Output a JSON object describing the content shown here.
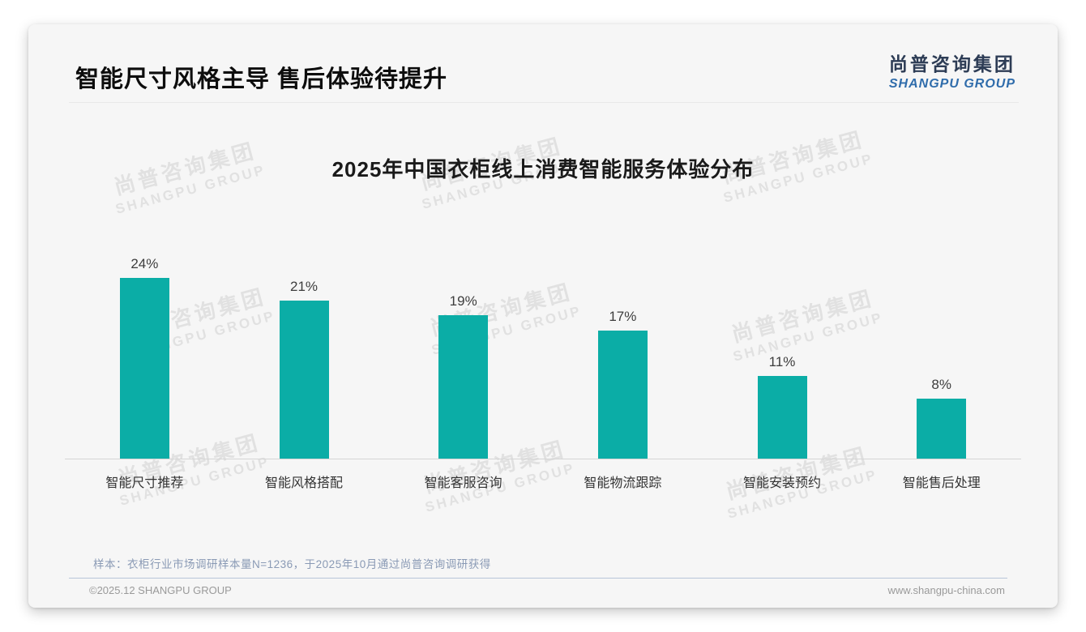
{
  "page": {
    "title": "智能尺寸风格主导 售后体验待提升",
    "logo": {
      "cn": "尚普咨询集团",
      "en": "SHANGPU GROUP"
    },
    "watermark": {
      "cn": "尚普咨询集团",
      "en": "SHANGPU GROUP"
    },
    "footnote": "样本：衣柜行业市场调研样本量N=1236，于2025年10月通过尚普咨询调研获得",
    "footer": {
      "copyright": "©2025.12 SHANGPU GROUP",
      "website": "www.shangpu-china.com"
    }
  },
  "chart_data": {
    "type": "bar",
    "title": "2025年中国衣柜线上消费智能服务体验分布",
    "categories": [
      "智能尺寸推荐",
      "智能风格搭配",
      "智能客服咨询",
      "智能物流跟踪",
      "智能安装预约",
      "智能售后处理"
    ],
    "values": [
      24,
      21,
      19,
      17,
      11,
      8
    ],
    "value_labels": [
      "24%",
      "21%",
      "19%",
      "17%",
      "11%",
      "8%"
    ],
    "unit": "%",
    "xlabel": "",
    "ylabel": "",
    "ylim": [
      0,
      27
    ],
    "grid": false,
    "legend": false,
    "bar_color": "#0bada6",
    "value_label_color": "#3d3d3d",
    "title_color": "#1a1a1a"
  }
}
